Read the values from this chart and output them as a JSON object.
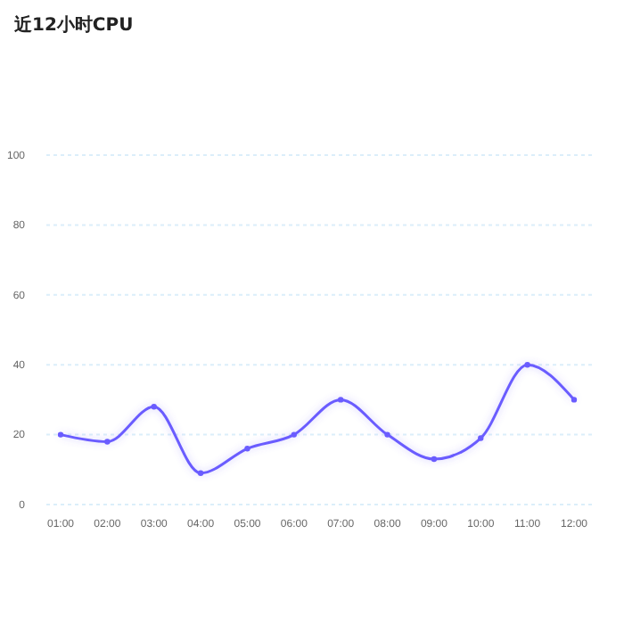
{
  "chart_data": {
    "type": "line",
    "title": "近12小时CPU",
    "categories": [
      "01:00",
      "02:00",
      "03:00",
      "04:00",
      "05:00",
      "06:00",
      "07:00",
      "08:00",
      "09:00",
      "10:00",
      "11:00",
      "12:00"
    ],
    "series": [
      {
        "color": "#6a5cff",
        "values": [
          20,
          18,
          28,
          9,
          16,
          20,
          30,
          20,
          13,
          19,
          40,
          30
        ]
      }
    ],
    "ylim": [
      0,
      100
    ],
    "yticks": [
      0,
      20,
      40,
      60,
      80,
      100
    ],
    "grid": "y",
    "marker": "circle",
    "line_style": "solid"
  }
}
